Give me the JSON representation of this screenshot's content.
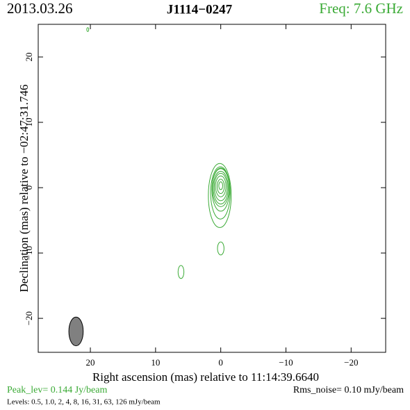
{
  "chart_data": {
    "type": "contour",
    "date": "2013.03.26",
    "title": "J1114−0247",
    "frequency": "Freq: 7.6 GHz",
    "xlabel": "Right ascension (mas) relative to 11:14:39.6640",
    "ylabel": "Declination (mas) relative to −02:47:31.746",
    "peak": "Peak_lev=  0.144 Jy/beam",
    "rms": "Rms_noise= 0.10 mJy/beam",
    "levels": "Levels: 0.5, 1.0,   2,   4,   8,  16,  31,  63, 126 mJy/beam",
    "color": "#3aaa35",
    "xlim": [
      28,
      -25.3
    ],
    "ylim": [
      -25.2,
      25
    ],
    "xticks": [
      20,
      10,
      0,
      {
        "value": -10,
        "label": "−10"
      },
      {
        "value": -20,
        "label": "−20"
      }
    ],
    "yticks": [
      {
        "value": -20,
        "label": "−20"
      },
      {
        "value": -10,
        "label": "−10"
      },
      0,
      10,
      20
    ],
    "components": [
      {
        "x": 0.15,
        "y": -1.2,
        "rx": 1.75,
        "ry": 4.9
      },
      {
        "x": 0.05,
        "y": -0.8,
        "rx": 1.5,
        "ry": 4.0
      },
      {
        "x": 0,
        "y": -0.3,
        "rx": 1.35,
        "ry": 3.3
      },
      {
        "x": 0,
        "y": 0,
        "rx": 1.3,
        "ry": 2.9
      },
      {
        "x": 0,
        "y": 0,
        "rx": 1.15,
        "ry": 2.5
      },
      {
        "x": 0,
        "y": 0.1,
        "rx": 1.0,
        "ry": 2.1
      },
      {
        "x": 0,
        "y": 0.2,
        "rx": 0.8,
        "ry": 1.6
      },
      {
        "x": 0,
        "y": 0.2,
        "rx": 0.55,
        "ry": 1.1
      },
      {
        "x": 0,
        "y": 0.3,
        "rx": 0.3,
        "ry": 0.6
      },
      {
        "x": 0,
        "y": -9.3,
        "rx": 0.5,
        "ry": 1.0
      },
      {
        "x": 6.1,
        "y": -12.9,
        "rx": 0.45,
        "ry": 1.0
      },
      {
        "x": 20.4,
        "y": 24.2,
        "rx": 0.15,
        "ry": 0.3
      }
    ],
    "beam": {
      "x": 22.2,
      "y": -22,
      "rx": 1.1,
      "ry": 2.2,
      "color": "#808080"
    }
  }
}
